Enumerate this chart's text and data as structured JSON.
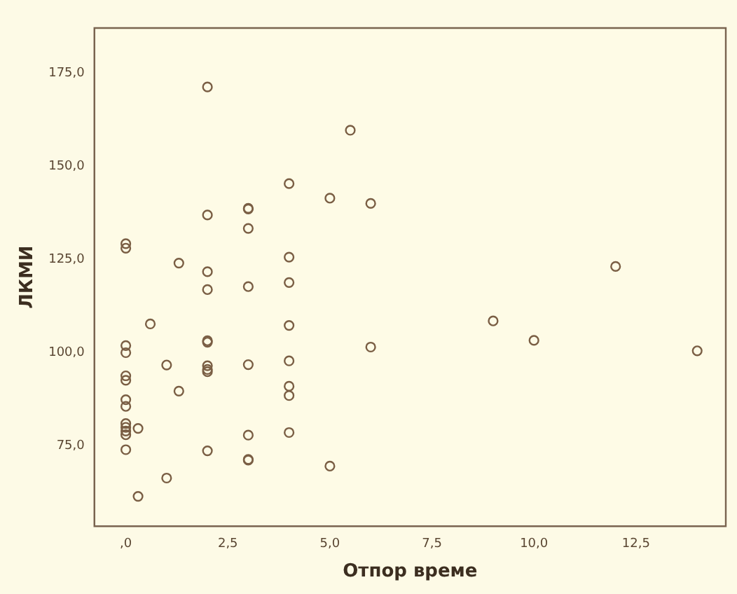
{
  "chart_data": {
    "type": "scatter",
    "xlabel": "Отпор време",
    "ylabel": "ЛКМИ",
    "x": [
      0,
      0,
      0,
      0,
      0,
      0,
      0,
      0,
      0,
      0,
      0,
      0,
      0,
      0.3,
      0.3,
      0.6,
      1,
      1,
      1.3,
      1.3,
      2,
      2,
      2,
      2,
      2,
      2,
      2,
      2,
      2,
      2,
      3,
      3,
      3,
      3,
      3,
      3,
      3,
      3,
      4,
      4,
      4,
      4,
      4,
      4,
      4,
      4,
      5,
      5,
      5.5,
      6,
      6,
      9,
      10,
      12,
      14
    ],
    "series": [
      {
        "color": "#7a5e44",
        "values": [
          129.2,
          128,
          101.9,
          100,
          93.8,
          92.6,
          87.4,
          85.6,
          81,
          80,
          79,
          78,
          74,
          79.7,
          61.5,
          107.7,
          96.7,
          66.4,
          124,
          89.7,
          171.2,
          136.9,
          121.7,
          116.9,
          103.2,
          102.8,
          96.5,
          95.5,
          94.9,
          73.7,
          138.7,
          138.5,
          133.3,
          117.7,
          96.8,
          77.9,
          71.4,
          71.2,
          145.3,
          125.6,
          118.8,
          107.3,
          97.8,
          91,
          88.5,
          78.6,
          141.4,
          69.6,
          159.6,
          140,
          101.5,
          108.5,
          103.3,
          123.1,
          100.5
        ]
      }
    ],
    "marker": "circle",
    "grid": false,
    "legend": false,
    "xlim": [
      -0.77,
      14.7
    ],
    "ylim": [
      53.5,
      187
    ],
    "xticks": [
      {
        "value": 0,
        "label": ",0"
      },
      {
        "value": 2.5,
        "label": "2,5"
      },
      {
        "value": 5,
        "label": "5,0"
      },
      {
        "value": 7.5,
        "label": "7,5"
      },
      {
        "value": 10,
        "label": "10,0"
      },
      {
        "value": 12.5,
        "label": "12,5"
      }
    ],
    "yticks": [
      {
        "value": 75,
        "label": "75,0"
      },
      {
        "value": 100,
        "label": "100,0"
      },
      {
        "value": 125,
        "label": "125,0"
      },
      {
        "value": 150,
        "label": "150,0"
      },
      {
        "value": 175,
        "label": "175,0"
      }
    ]
  }
}
